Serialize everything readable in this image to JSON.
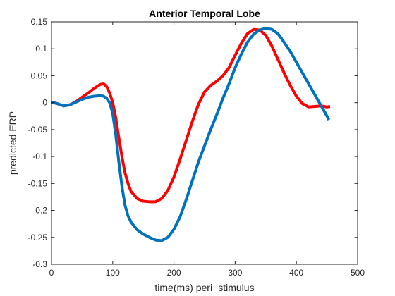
{
  "chart_data": {
    "type": "line",
    "title": "Anterior Temporal Lobe",
    "xlabel": "time(ms) peri−stimulus",
    "ylabel": "predicted ERP",
    "xlim": [
      0,
      500
    ],
    "ylim": [
      -0.3,
      0.15
    ],
    "xticks": [
      0,
      100,
      200,
      300,
      400,
      500
    ],
    "xtick_labels": [
      "0",
      "100",
      "200",
      "300",
      "400",
      "500"
    ],
    "yticks": [
      0.15,
      0.1,
      0.05,
      0,
      -0.05,
      -0.1,
      -0.15,
      -0.2,
      -0.25,
      -0.3
    ],
    "ytick_labels": [
      "0.15",
      "0.1",
      "0.05",
      "0",
      "-0.05",
      "-0.1",
      "-0.15",
      "-0.2",
      "-0.25",
      "-0.3"
    ],
    "grid": false,
    "legend": "none",
    "series": [
      {
        "color": "#ff0000",
        "x": [
          0,
          10,
          20,
          30,
          40,
          50,
          60,
          70,
          80,
          85,
          90,
          95,
          100,
          105,
          110,
          115,
          120,
          125,
          130,
          140,
          150,
          160,
          170,
          180,
          190,
          200,
          210,
          220,
          230,
          240,
          250,
          260,
          270,
          280,
          290,
          300,
          310,
          320,
          330,
          340,
          350,
          360,
          370,
          380,
          390,
          400,
          410,
          420,
          430,
          440,
          450,
          455
        ],
        "y": [
          0.001,
          -0.002,
          -0.006,
          -0.004,
          0.002,
          0.01,
          0.018,
          0.027,
          0.034,
          0.035,
          0.03,
          0.018,
          0.0,
          -0.028,
          -0.065,
          -0.1,
          -0.13,
          -0.15,
          -0.165,
          -0.178,
          -0.183,
          -0.184,
          -0.184,
          -0.178,
          -0.163,
          -0.138,
          -0.105,
          -0.07,
          -0.035,
          -0.003,
          0.02,
          0.032,
          0.04,
          0.05,
          0.065,
          0.088,
          0.11,
          0.128,
          0.136,
          0.135,
          0.125,
          0.105,
          0.08,
          0.055,
          0.032,
          0.012,
          -0.002,
          -0.008,
          -0.007,
          -0.006,
          -0.008,
          -0.007
        ]
      },
      {
        "color": "#0072bd",
        "x": [
          0,
          10,
          20,
          30,
          40,
          50,
          60,
          70,
          80,
          85,
          90,
          95,
          100,
          105,
          110,
          115,
          120,
          125,
          130,
          140,
          150,
          160,
          170,
          180,
          190,
          200,
          210,
          220,
          230,
          240,
          250,
          260,
          270,
          280,
          290,
          300,
          310,
          320,
          330,
          340,
          350,
          360,
          370,
          380,
          390,
          400,
          410,
          420,
          430,
          440,
          450,
          453
        ],
        "y": [
          0.001,
          -0.002,
          -0.006,
          -0.004,
          0.001,
          0.006,
          0.01,
          0.012,
          0.013,
          0.012,
          0.008,
          0.0,
          -0.02,
          -0.06,
          -0.11,
          -0.155,
          -0.19,
          -0.21,
          -0.222,
          -0.236,
          -0.244,
          -0.25,
          -0.255,
          -0.256,
          -0.25,
          -0.235,
          -0.212,
          -0.18,
          -0.145,
          -0.11,
          -0.08,
          -0.05,
          -0.022,
          0.008,
          0.035,
          0.065,
          0.09,
          0.112,
          0.127,
          0.135,
          0.138,
          0.136,
          0.128,
          0.112,
          0.095,
          0.075,
          0.055,
          0.035,
          0.015,
          -0.005,
          -0.025,
          -0.032
        ]
      }
    ]
  }
}
